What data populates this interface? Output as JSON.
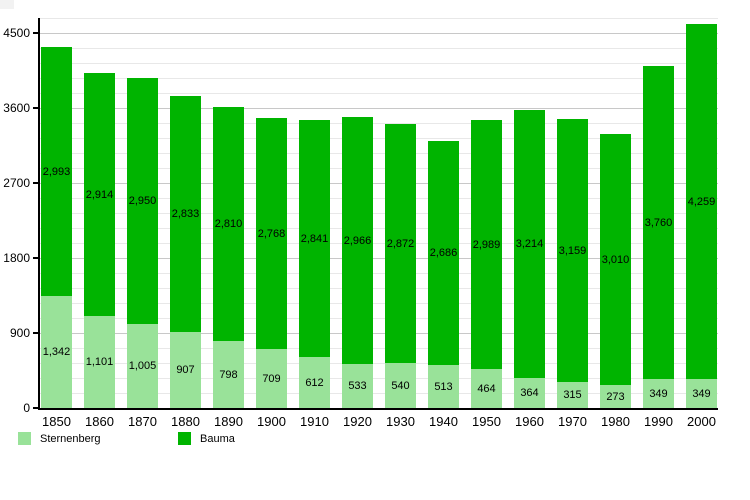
{
  "chart_data": {
    "type": "bar",
    "stacked": true,
    "title": "",
    "categories": [
      "1850",
      "1860",
      "1870",
      "1880",
      "1890",
      "1900",
      "1910",
      "1920",
      "1930",
      "1940",
      "1950",
      "1960",
      "1970",
      "1980",
      "1990",
      "2000"
    ],
    "series": [
      {
        "name": "Sternenberg",
        "color": "#99e299",
        "values": [
          1342,
          1101,
          1005,
          907,
          798,
          709,
          612,
          533,
          540,
          513,
          464,
          364,
          315,
          273,
          349,
          349
        ]
      },
      {
        "name": "Bauma",
        "color": "#00b400",
        "values": [
          2993,
          2914,
          2950,
          2833,
          2810,
          2768,
          2841,
          2966,
          2872,
          2686,
          2989,
          3214,
          3159,
          3010,
          3760,
          4259
        ]
      }
    ],
    "bar_value_labels": true,
    "value_label_format": "thousands-comma",
    "xlabel": "",
    "ylabel": "",
    "ylim": [
      0,
      4680
    ],
    "y_major_ticks": [
      0,
      900,
      1800,
      2700,
      3600,
      4500
    ],
    "y_minor_step": 180,
    "grid": true,
    "legend_position": "bottom-left",
    "colors": {
      "axis": "#000000",
      "grid_minor": "#e8e8e8",
      "grid_major": "#c8c8c8",
      "background": "#ffffff",
      "label_text": "#000000"
    }
  }
}
